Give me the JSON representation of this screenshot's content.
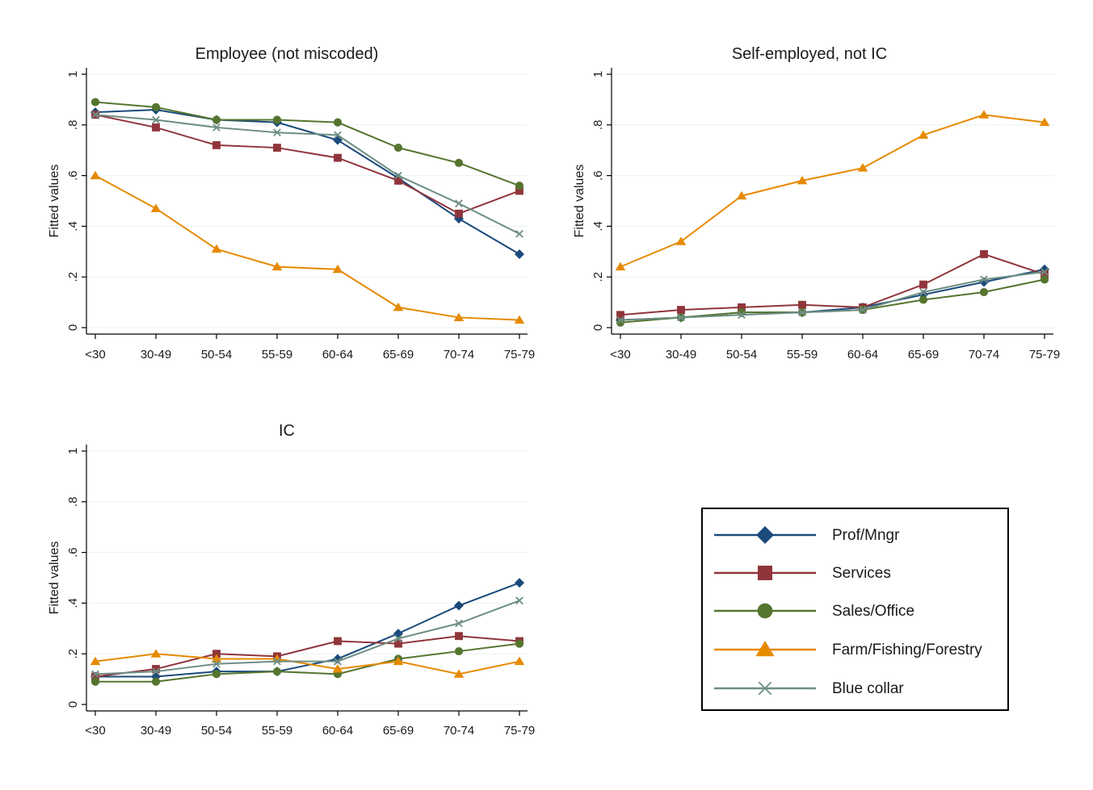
{
  "chart_data": [
    {
      "type": "line",
      "title": "Employee (not miscoded)",
      "ylabel": "Fitted values",
      "xlabel": "",
      "categories": [
        "<30",
        "30-49",
        "50-54",
        "55-59",
        "60-64",
        "65-69",
        "70-74",
        "75-79"
      ],
      "ylim": [
        0,
        1
      ],
      "yticks": [
        0,
        0.2,
        0.4,
        0.6,
        0.8,
        1
      ],
      "ytick_labels": [
        "0",
        ".2",
        ".4",
        ".6",
        ".8",
        "1"
      ],
      "grid": true,
      "series": [
        {
          "name": "Prof/Mngr",
          "values": [
            0.85,
            0.86,
            0.82,
            0.81,
            0.74,
            0.59,
            0.43,
            0.29
          ]
        },
        {
          "name": "Services",
          "values": [
            0.84,
            0.79,
            0.72,
            0.71,
            0.67,
            0.58,
            0.45,
            0.54
          ]
        },
        {
          "name": "Sales/Office",
          "values": [
            0.89,
            0.87,
            0.82,
            0.82,
            0.81,
            0.71,
            0.65,
            0.56
          ]
        },
        {
          "name": "Farm/Fishing/Forestry",
          "values": [
            0.6,
            0.47,
            0.31,
            0.24,
            0.23,
            0.08,
            0.04,
            0.03
          ]
        },
        {
          "name": "Blue collar",
          "values": [
            0.84,
            0.82,
            0.79,
            0.77,
            0.76,
            0.6,
            0.49,
            0.37
          ]
        }
      ]
    },
    {
      "type": "line",
      "title": "Self-employed, not IC",
      "ylabel": "Fitted values",
      "xlabel": "",
      "categories": [
        "<30",
        "30-49",
        "50-54",
        "55-59",
        "60-64",
        "65-69",
        "70-74",
        "75-79"
      ],
      "ylim": [
        0,
        1
      ],
      "yticks": [
        0,
        0.2,
        0.4,
        0.6,
        0.8,
        1
      ],
      "ytick_labels": [
        "0",
        ".2",
        ".4",
        ".6",
        ".8",
        "1"
      ],
      "grid": true,
      "series": [
        {
          "name": "Prof/Mngr",
          "values": [
            0.03,
            0.04,
            0.06,
            0.06,
            0.08,
            0.13,
            0.18,
            0.23
          ]
        },
        {
          "name": "Services",
          "values": [
            0.05,
            0.07,
            0.08,
            0.09,
            0.08,
            0.17,
            0.29,
            0.21
          ]
        },
        {
          "name": "Sales/Office",
          "values": [
            0.02,
            0.04,
            0.06,
            0.06,
            0.07,
            0.11,
            0.14,
            0.19
          ]
        },
        {
          "name": "Farm/Fishing/Forestry",
          "values": [
            0.24,
            0.34,
            0.52,
            0.58,
            0.63,
            0.76,
            0.84,
            0.81
          ]
        },
        {
          "name": "Blue collar",
          "values": [
            0.03,
            0.04,
            0.05,
            0.06,
            0.07,
            0.14,
            0.19,
            0.22
          ]
        }
      ]
    },
    {
      "type": "line",
      "title": "IC",
      "ylabel": "Fitted values",
      "xlabel": "",
      "categories": [
        "<30",
        "30-49",
        "50-54",
        "55-59",
        "60-64",
        "65-69",
        "70-74",
        "75-79"
      ],
      "ylim": [
        0,
        1
      ],
      "yticks": [
        0,
        0.2,
        0.4,
        0.6,
        0.8,
        1
      ],
      "ytick_labels": [
        "0",
        ".2",
        ".4",
        ".6",
        ".8",
        "1"
      ],
      "grid": true,
      "series": [
        {
          "name": "Prof/Mngr",
          "values": [
            0.11,
            0.11,
            0.13,
            0.13,
            0.18,
            0.28,
            0.39,
            0.48
          ]
        },
        {
          "name": "Services",
          "values": [
            0.11,
            0.14,
            0.2,
            0.19,
            0.25,
            0.24,
            0.27,
            0.25
          ]
        },
        {
          "name": "Sales/Office",
          "values": [
            0.09,
            0.09,
            0.12,
            0.13,
            0.12,
            0.18,
            0.21,
            0.24
          ]
        },
        {
          "name": "Farm/Fishing/Forestry",
          "values": [
            0.17,
            0.2,
            0.18,
            0.18,
            0.14,
            0.17,
            0.12,
            0.17
          ]
        },
        {
          "name": "Blue collar",
          "values": [
            0.12,
            0.13,
            0.16,
            0.17,
            0.17,
            0.26,
            0.32,
            0.41
          ]
        }
      ]
    }
  ],
  "legend": {
    "placement": "bottom-right",
    "items": [
      {
        "name": "Prof/Mngr",
        "color": "#1a4a7a",
        "marker": "diamond"
      },
      {
        "name": "Services",
        "color": "#90353b",
        "marker": "square"
      },
      {
        "name": "Sales/Office",
        "color": "#55752f",
        "marker": "circle"
      },
      {
        "name": "Farm/Fishing/Forestry",
        "color": "#e68a00",
        "marker": "triangle"
      },
      {
        "name": "Blue collar",
        "color": "#6e8e84",
        "marker": "x"
      }
    ]
  }
}
